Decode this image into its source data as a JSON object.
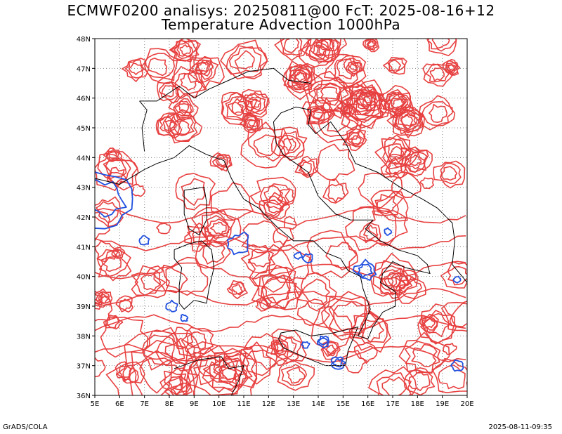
{
  "title_line1": "ECMWF0200 analisys: 20250811@00 FcT: 2025-08-16+12",
  "title_line2": "Temperature Advection 1000hPa",
  "footer_left": "GrADS/COLA",
  "footer_right": "2025-08-11-09:35",
  "map": {
    "lon_min": 5,
    "lon_max": 20,
    "lat_min": 36,
    "lat_max": 48,
    "x_ticks": [
      "5E",
      "6E",
      "7E",
      "8E",
      "9E",
      "10E",
      "11E",
      "12E",
      "13E",
      "14E",
      "15E",
      "16E",
      "17E",
      "18E",
      "19E",
      "20E"
    ],
    "y_ticks": [
      "36N",
      "37N",
      "38N",
      "39N",
      "40N",
      "41N",
      "42N",
      "43N",
      "44N",
      "45N",
      "46N",
      "47N",
      "48N"
    ],
    "grid": "dotted",
    "positive_contour_color": "#e84040",
    "negative_contour_color": "#2050e0",
    "coastline_color": "#000000"
  }
}
